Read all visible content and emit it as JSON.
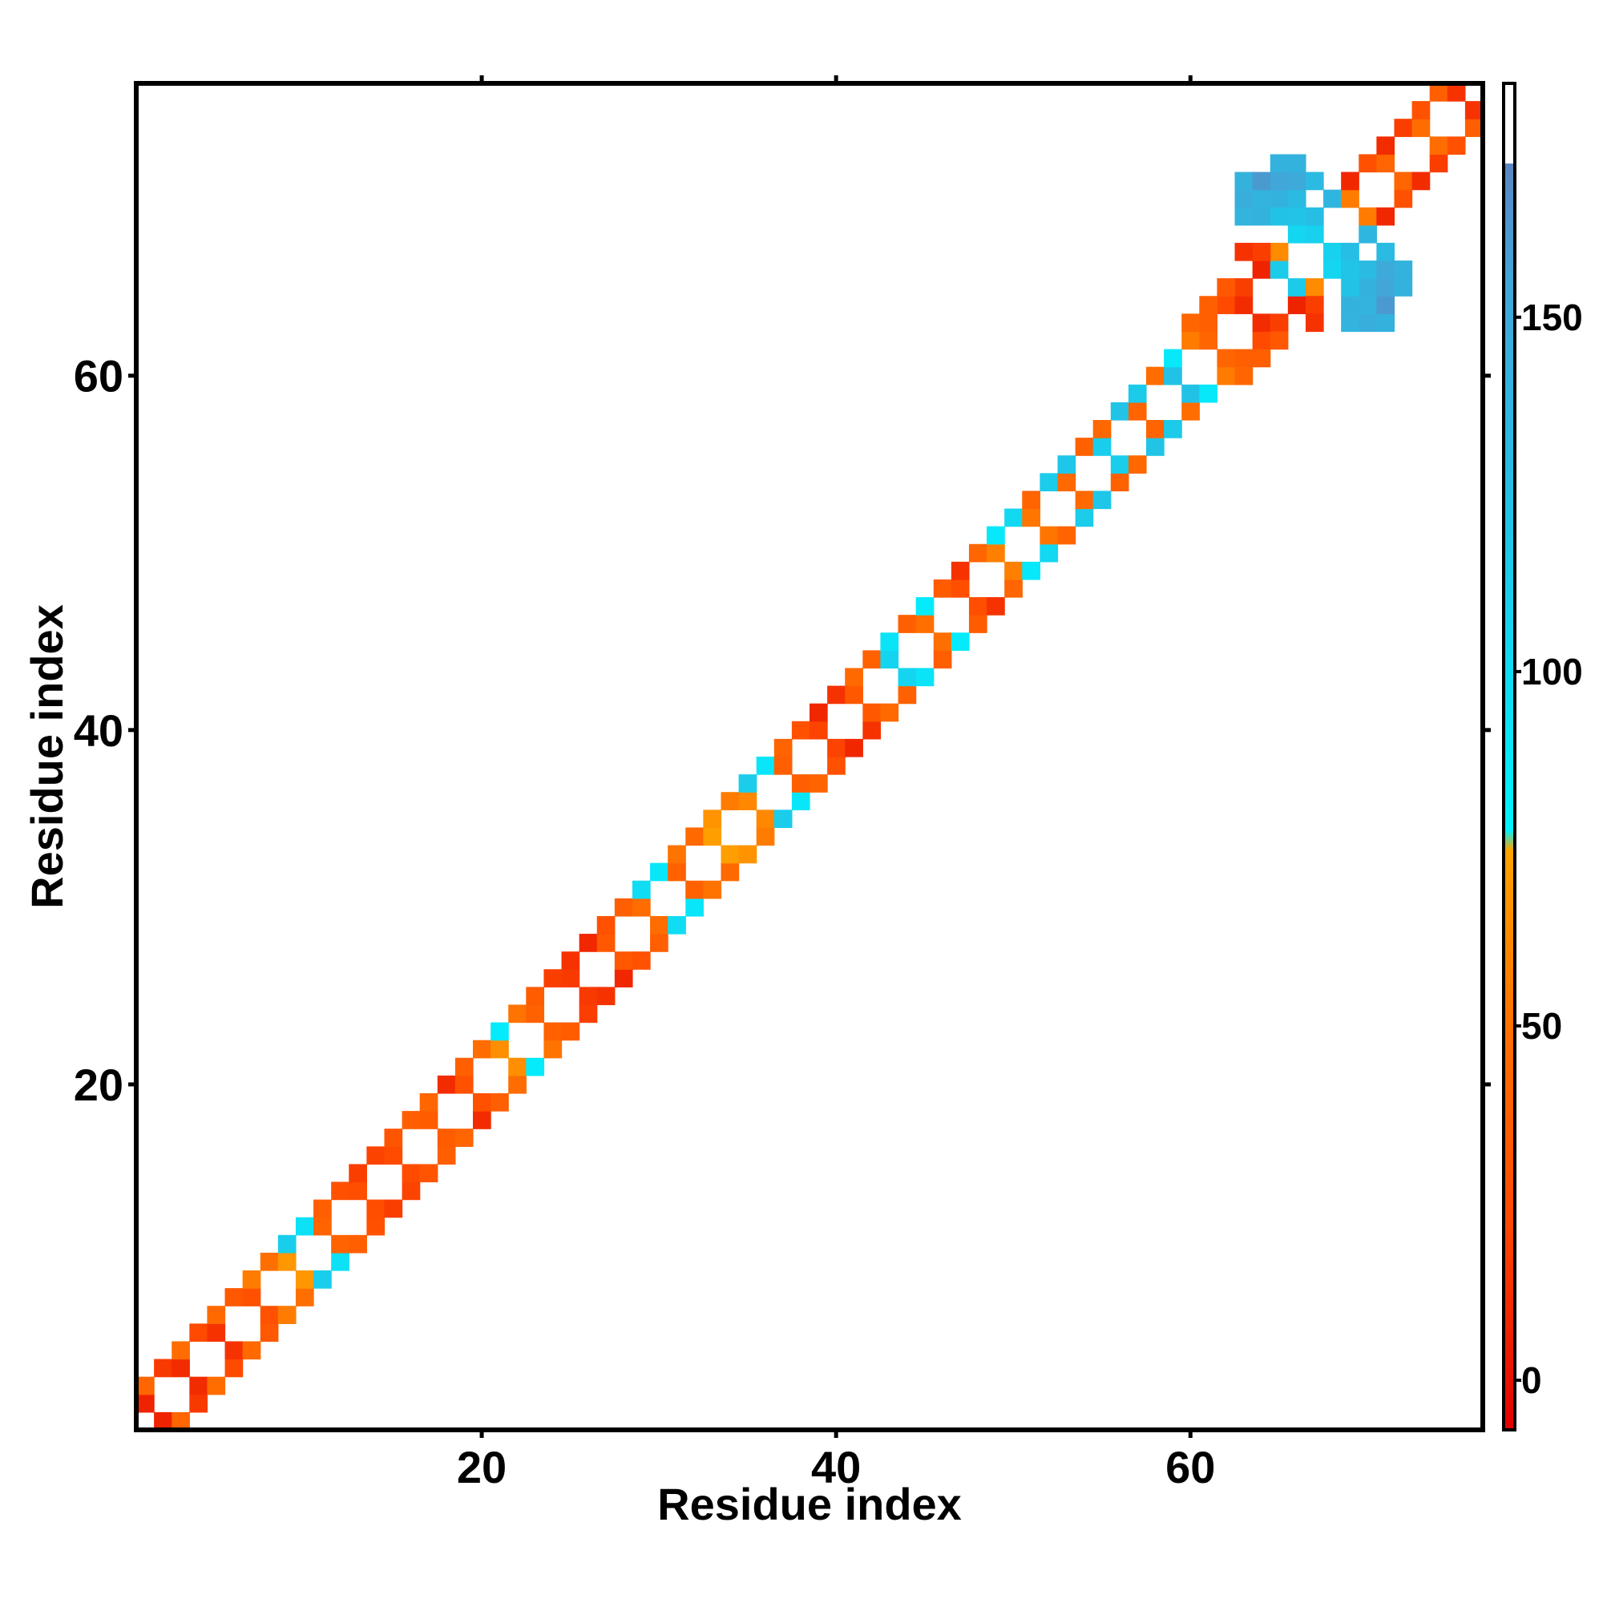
{
  "chart_data": {
    "type": "heatmap",
    "title": "",
    "xlabel": "Residue index",
    "ylabel": "Residue index",
    "xlim": [
      1,
      76
    ],
    "ylim": [
      1,
      76
    ],
    "x_ticks": [
      20,
      40,
      60
    ],
    "y_ticks": [
      20,
      40,
      60
    ],
    "colorbar": {
      "min": -7,
      "max": 183,
      "ticks": [
        0,
        50,
        100,
        150
      ],
      "stops": [
        {
          "value": -7,
          "color": "#e10000"
        },
        {
          "value": 25,
          "color": "#ff4a00"
        },
        {
          "value": 55,
          "color": "#ff7300"
        },
        {
          "value": 80,
          "color": "#ffa200"
        },
        {
          "value": 83,
          "color": "#00f2ff"
        },
        {
          "value": 130,
          "color": "#22c2e6"
        },
        {
          "value": 165,
          "color": "#41a6d8"
        },
        {
          "value": 183,
          "color": "#5a86c2"
        }
      ]
    },
    "cells": [
      [
        1,
        2,
        8
      ],
      [
        2,
        1,
        8
      ],
      [
        1,
        3,
        45
      ],
      [
        3,
        1,
        45
      ],
      [
        2,
        4,
        18
      ],
      [
        4,
        2,
        18
      ],
      [
        3,
        4,
        12
      ],
      [
        4,
        3,
        12
      ],
      [
        3,
        5,
        50
      ],
      [
        5,
        3,
        50
      ],
      [
        4,
        6,
        25
      ],
      [
        6,
        4,
        25
      ],
      [
        5,
        6,
        15
      ],
      [
        6,
        5,
        15
      ],
      [
        5,
        7,
        48
      ],
      [
        7,
        5,
        48
      ],
      [
        6,
        8,
        35
      ],
      [
        8,
        6,
        35
      ],
      [
        7,
        8,
        30
      ],
      [
        8,
        7,
        30
      ],
      [
        7,
        9,
        60
      ],
      [
        9,
        7,
        60
      ],
      [
        8,
        10,
        52
      ],
      [
        10,
        8,
        52
      ],
      [
        9,
        10,
        74
      ],
      [
        10,
        9,
        74
      ],
      [
        9,
        11,
        118
      ],
      [
        11,
        9,
        118
      ],
      [
        10,
        12,
        100
      ],
      [
        12,
        10,
        100
      ],
      [
        11,
        12,
        44
      ],
      [
        12,
        11,
        44
      ],
      [
        11,
        13,
        40
      ],
      [
        13,
        11,
        40
      ],
      [
        12,
        14,
        30
      ],
      [
        14,
        12,
        30
      ],
      [
        13,
        14,
        28
      ],
      [
        14,
        13,
        28
      ],
      [
        13,
        15,
        20
      ],
      [
        15,
        13,
        20
      ],
      [
        14,
        16,
        22
      ],
      [
        16,
        14,
        22
      ],
      [
        15,
        16,
        26
      ],
      [
        16,
        15,
        26
      ],
      [
        15,
        17,
        32
      ],
      [
        17,
        15,
        32
      ],
      [
        16,
        18,
        40
      ],
      [
        18,
        16,
        40
      ],
      [
        17,
        18,
        38
      ],
      [
        18,
        17,
        38
      ],
      [
        17,
        19,
        45
      ],
      [
        19,
        17,
        45
      ],
      [
        18,
        20,
        12
      ],
      [
        20,
        18,
        12
      ],
      [
        19,
        20,
        30
      ],
      [
        20,
        19,
        30
      ],
      [
        19,
        21,
        40
      ],
      [
        21,
        19,
        40
      ],
      [
        20,
        22,
        50
      ],
      [
        22,
        20,
        50
      ],
      [
        21,
        22,
        70
      ],
      [
        22,
        21,
        70
      ],
      [
        21,
        23,
        90
      ],
      [
        23,
        21,
        90
      ],
      [
        22,
        24,
        55
      ],
      [
        24,
        22,
        55
      ],
      [
        23,
        24,
        42
      ],
      [
        24,
        23,
        42
      ],
      [
        23,
        25,
        38
      ],
      [
        25,
        23,
        38
      ],
      [
        24,
        26,
        20
      ],
      [
        26,
        24,
        20
      ],
      [
        25,
        26,
        18
      ],
      [
        26,
        25,
        18
      ],
      [
        25,
        27,
        15
      ],
      [
        27,
        25,
        15
      ],
      [
        26,
        28,
        10
      ],
      [
        28,
        26,
        10
      ],
      [
        27,
        28,
        35
      ],
      [
        28,
        27,
        35
      ],
      [
        27,
        29,
        30
      ],
      [
        29,
        27,
        30
      ],
      [
        28,
        30,
        40
      ],
      [
        30,
        28,
        40
      ],
      [
        29,
        30,
        50
      ],
      [
        30,
        29,
        50
      ],
      [
        29,
        31,
        105
      ],
      [
        31,
        29,
        105
      ],
      [
        30,
        32,
        95
      ],
      [
        32,
        30,
        95
      ],
      [
        31,
        32,
        42
      ],
      [
        32,
        31,
        42
      ],
      [
        31,
        33,
        55
      ],
      [
        33,
        31,
        55
      ],
      [
        32,
        34,
        48
      ],
      [
        34,
        32,
        48
      ],
      [
        33,
        34,
        78
      ],
      [
        34,
        33,
        78
      ],
      [
        33,
        35,
        72
      ],
      [
        35,
        33,
        72
      ],
      [
        34,
        36,
        60
      ],
      [
        36,
        34,
        60
      ],
      [
        35,
        36,
        66
      ],
      [
        36,
        35,
        66
      ],
      [
        35,
        37,
        120
      ],
      [
        37,
        35,
        120
      ],
      [
        36,
        38,
        95
      ],
      [
        38,
        36,
        95
      ],
      [
        37,
        38,
        40
      ],
      [
        38,
        37,
        40
      ],
      [
        37,
        39,
        44
      ],
      [
        39,
        37,
        44
      ],
      [
        38,
        40,
        30
      ],
      [
        40,
        38,
        30
      ],
      [
        39,
        40,
        22
      ],
      [
        40,
        39,
        22
      ],
      [
        39,
        41,
        10
      ],
      [
        41,
        39,
        10
      ],
      [
        40,
        42,
        15
      ],
      [
        42,
        40,
        15
      ],
      [
        41,
        42,
        35
      ],
      [
        42,
        41,
        35
      ],
      [
        41,
        43,
        48
      ],
      [
        43,
        41,
        48
      ],
      [
        42,
        44,
        42
      ],
      [
        44,
        42,
        42
      ],
      [
        43,
        44,
        112
      ],
      [
        44,
        43,
        112
      ],
      [
        43,
        45,
        98
      ],
      [
        45,
        43,
        98
      ],
      [
        44,
        46,
        40
      ],
      [
        46,
        44,
        40
      ],
      [
        45,
        46,
        52
      ],
      [
        46,
        45,
        52
      ],
      [
        45,
        47,
        90
      ],
      [
        47,
        45,
        90
      ],
      [
        46,
        48,
        38
      ],
      [
        48,
        46,
        38
      ],
      [
        47,
        48,
        28
      ],
      [
        48,
        47,
        28
      ],
      [
        47,
        49,
        15
      ],
      [
        49,
        47,
        15
      ],
      [
        48,
        50,
        45
      ],
      [
        50,
        48,
        45
      ],
      [
        49,
        50,
        62
      ],
      [
        50,
        49,
        62
      ],
      [
        49,
        51,
        93
      ],
      [
        51,
        49,
        93
      ],
      [
        50,
        52,
        108
      ],
      [
        52,
        50,
        108
      ],
      [
        51,
        52,
        56
      ],
      [
        52,
        51,
        56
      ],
      [
        51,
        53,
        44
      ],
      [
        53,
        51,
        44
      ],
      [
        52,
        54,
        120
      ],
      [
        54,
        52,
        120
      ],
      [
        53,
        54,
        48
      ],
      [
        54,
        53,
        48
      ],
      [
        53,
        55,
        125
      ],
      [
        55,
        53,
        125
      ],
      [
        54,
        56,
        42
      ],
      [
        56,
        54,
        42
      ],
      [
        55,
        56,
        118
      ],
      [
        56,
        55,
        118
      ],
      [
        55,
        57,
        46
      ],
      [
        57,
        55,
        46
      ],
      [
        56,
        58,
        128
      ],
      [
        58,
        56,
        128
      ],
      [
        57,
        58,
        44
      ],
      [
        58,
        57,
        44
      ],
      [
        57,
        59,
        122
      ],
      [
        59,
        57,
        122
      ],
      [
        58,
        60,
        50
      ],
      [
        60,
        58,
        50
      ],
      [
        59,
        60,
        130
      ],
      [
        60,
        59,
        130
      ],
      [
        59,
        61,
        92
      ],
      [
        61,
        59,
        92
      ],
      [
        60,
        62,
        60
      ],
      [
        62,
        60,
        60
      ],
      [
        61,
        62,
        45
      ],
      [
        62,
        61,
        45
      ],
      [
        61,
        63,
        40
      ],
      [
        63,
        61,
        40
      ],
      [
        62,
        64,
        25
      ],
      [
        64,
        62,
        25
      ],
      [
        63,
        64,
        12
      ],
      [
        64,
        63,
        12
      ],
      [
        63,
        65,
        20
      ],
      [
        65,
        63,
        20
      ],
      [
        64,
        66,
        8
      ],
      [
        66,
        64,
        8
      ],
      [
        65,
        66,
        122
      ],
      [
        66,
        65,
        122
      ],
      [
        65,
        67,
        68
      ],
      [
        67,
        65,
        68
      ],
      [
        66,
        68,
        110
      ],
      [
        68,
        66,
        110
      ],
      [
        67,
        68,
        115
      ],
      [
        68,
        67,
        115
      ],
      [
        67,
        69,
        135
      ],
      [
        69,
        67,
        135
      ],
      [
        68,
        70,
        145
      ],
      [
        70,
        68,
        145
      ],
      [
        69,
        70,
        60
      ],
      [
        70,
        69,
        60
      ],
      [
        69,
        71,
        10
      ],
      [
        71,
        69,
        10
      ],
      [
        70,
        72,
        30
      ],
      [
        72,
        70,
        30
      ],
      [
        71,
        72,
        45
      ],
      [
        72,
        71,
        45
      ],
      [
        71,
        73,
        12
      ],
      [
        73,
        71,
        12
      ],
      [
        72,
        74,
        20
      ],
      [
        74,
        72,
        20
      ],
      [
        73,
        74,
        50
      ],
      [
        74,
        73,
        50
      ],
      [
        73,
        75,
        30
      ],
      [
        75,
        73,
        30
      ],
      [
        74,
        76,
        40
      ],
      [
        76,
        74,
        40
      ],
      [
        75,
        76,
        15
      ],
      [
        76,
        75,
        15
      ],
      [
        63,
        69,
        148
      ],
      [
        69,
        63,
        148
      ],
      [
        63,
        70,
        155
      ],
      [
        70,
        63,
        155
      ],
      [
        63,
        71,
        150
      ],
      [
        71,
        63,
        150
      ],
      [
        64,
        69,
        150
      ],
      [
        69,
        64,
        150
      ],
      [
        64,
        70,
        148
      ],
      [
        70,
        64,
        148
      ],
      [
        64,
        71,
        172
      ],
      [
        71,
        64,
        172
      ],
      [
        65,
        70,
        150
      ],
      [
        70,
        65,
        150
      ],
      [
        65,
        71,
        165
      ],
      [
        71,
        65,
        165
      ],
      [
        66,
        70,
        140
      ],
      [
        70,
        66,
        140
      ],
      [
        66,
        71,
        160
      ],
      [
        71,
        66,
        160
      ],
      [
        67,
        71,
        140
      ],
      [
        71,
        67,
        140
      ],
      [
        65,
        72,
        150
      ],
      [
        72,
        65,
        150
      ],
      [
        66,
        72,
        150
      ],
      [
        72,
        66,
        150
      ],
      [
        65,
        69,
        130
      ],
      [
        69,
        65,
        130
      ],
      [
        66,
        69,
        128
      ],
      [
        69,
        66,
        128
      ],
      [
        64,
        67,
        20
      ],
      [
        67,
        64,
        20
      ],
      [
        63,
        67,
        15
      ],
      [
        67,
        63,
        15
      ],
      [
        62,
        65,
        35
      ],
      [
        65,
        62,
        35
      ],
      [
        61,
        64,
        40
      ],
      [
        64,
        61,
        40
      ],
      [
        60,
        63,
        45
      ],
      [
        63,
        60,
        45
      ]
    ]
  }
}
